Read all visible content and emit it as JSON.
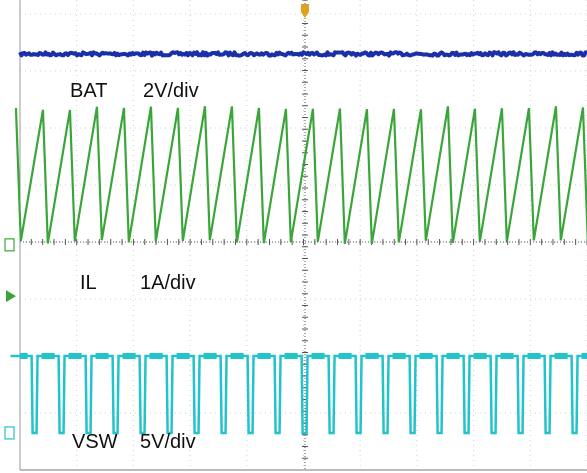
{
  "chart_data": {
    "type": "line",
    "grid": true,
    "grid_divisions": {
      "horizontal": 10,
      "vertical": 8
    },
    "channels": [
      {
        "name": "BAT",
        "label": "BAT",
        "scale": "2V/div",
        "color": "#1a2fa8",
        "waveform": "dc",
        "level_div": 3.3,
        "noise_div": 0.03,
        "ground_marker_div": null
      },
      {
        "name": "IL",
        "label": "IL",
        "scale": "1A/div",
        "color": "#3aa63a",
        "waveform": "triangle",
        "high_div": 2.35,
        "low_div": 0.0,
        "cycles": 21,
        "rise_fraction": 0.82,
        "ground_marker_div": -0.05
      },
      {
        "name": "VSW",
        "label": "VSW",
        "scale": "5V/div",
        "color": "#22c3c9",
        "waveform": "square",
        "high_div": -2.0,
        "low_div": -3.35,
        "cycles": 21,
        "duty": 0.78,
        "ground_marker_div": -3.35
      }
    ],
    "trigger_marker_color": "#e0a020",
    "cursor_marker_color": "#3aa63a"
  }
}
